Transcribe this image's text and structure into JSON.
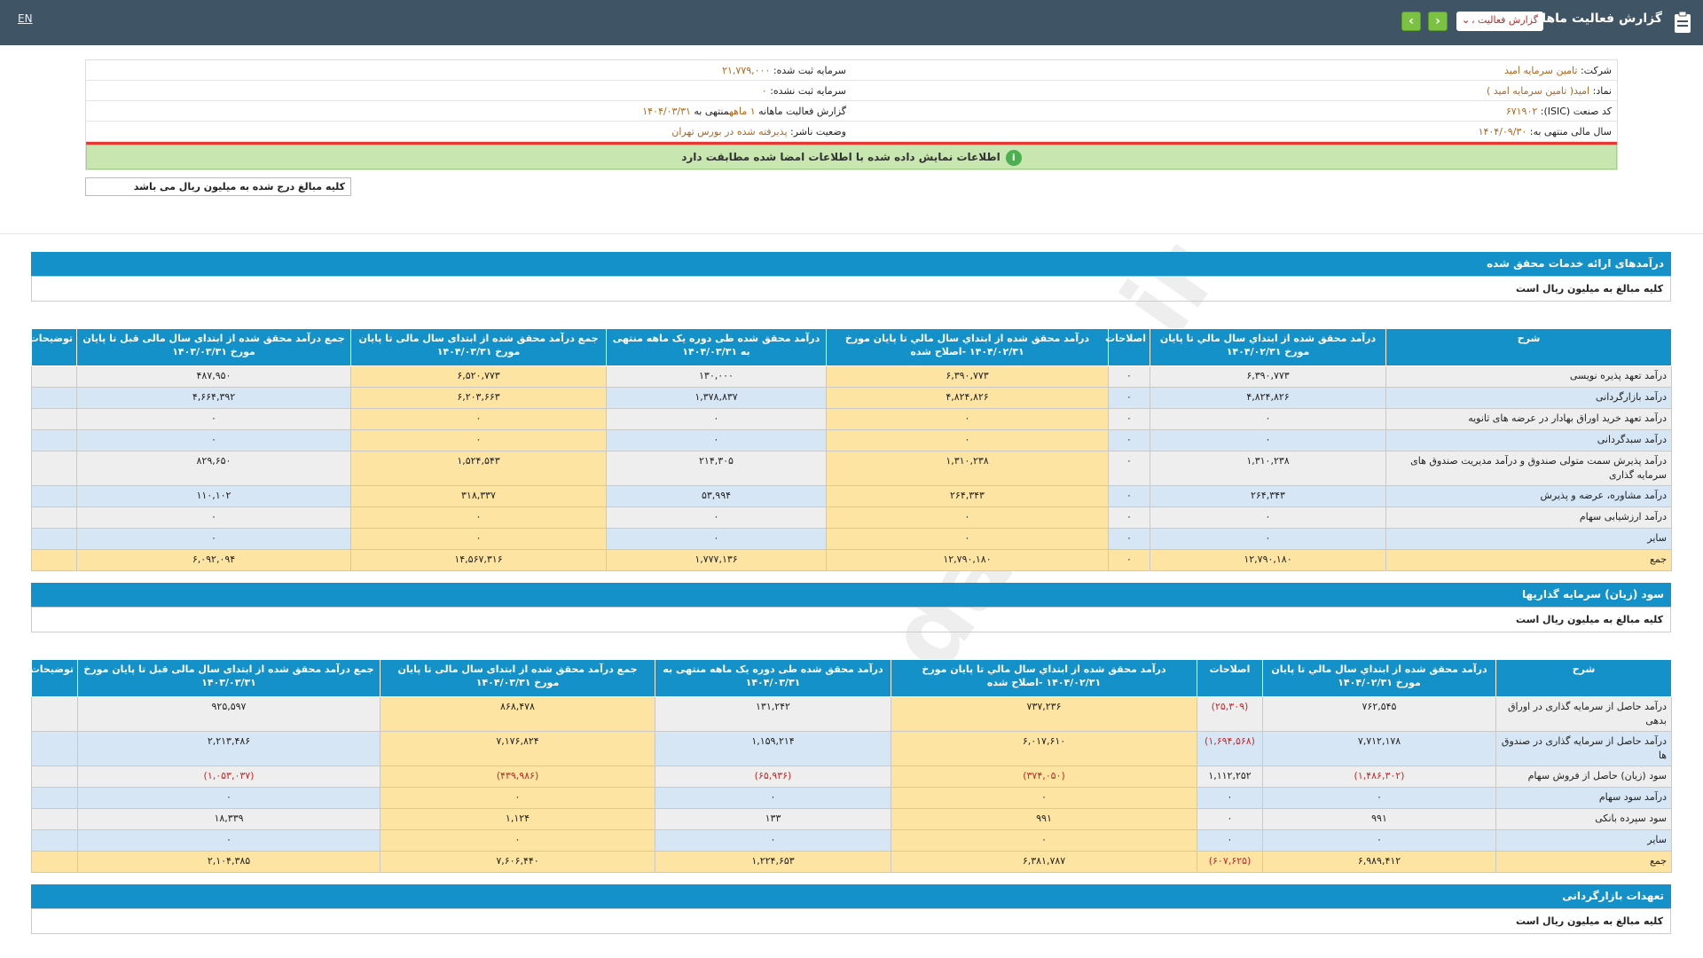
{
  "header": {
    "lang_toggle": "EN",
    "title": "گزارش فعالیت ماهانه",
    "report_select": "گزارش فعالیت ،"
  },
  "info": {
    "company_label": "شرکت:",
    "company_value": "تامین سرمایه امید",
    "symbol_label": "نماد:",
    "symbol_value": "امید( تامین سرمایه امید )",
    "isic_label": "کد صنعت (ISIC):",
    "isic_value": "۶۷۱۹۰۲",
    "fy_label": "سال مالی منتهی به:",
    "fy_value": "۱۴۰۴/۰۹/۳۰",
    "reg_capital_label": "سرمایه ثبت شده:",
    "reg_capital_value": "۲۱,۷۷۹,۰۰۰",
    "unreg_capital_label": "سرمایه ثبت نشده:",
    "unreg_capital_value": "۰",
    "report_label": "گزارش فعالیت ماهانه",
    "report_value": "۱ ماهه",
    "report_end_label": "منتهی به",
    "report_end_value": "۱۴۰۴/۰۳/۳۱",
    "status_label": "وضعیت ناشر:",
    "status_value": "پذیرفته شده در بورس تهران"
  },
  "match_message": "اطلاعات نمایش داده شده با اطلاعات امضا شده مطابقت دارد",
  "unit_note": "کلیه مبالغ درج شده به میلیون ریال می باشد",
  "watermark": "@Codal360.ir",
  "section1": {
    "title": "درآمدهای ارائه خدمات محقق شده",
    "note": "کلیه مبالغ به میلیون ریال است",
    "headers": [
      "شرح",
      "درآمد محقق شده از ابتداي سال مالي تا پایان مورخ ۱۴۰۴/۰۲/۳۱",
      "اصلاحات",
      "درآمد محقق شده از ابتداي سال مالي تا پایان مورخ ۱۴۰۴/۰۲/۳۱ -اصلاح شده",
      "درآمد محقق شده طی دوره یک ماهه منتهی به ۱۴۰۴/۰۳/۳۱",
      "جمع درآمد محقق شده از ابتدای سال مالی تا پایان مورخ ۱۴۰۴/۰۳/۳۱",
      "جمع درآمد محقق شده از ابتدای سال مالی قبل تا پایان مورخ ۱۴۰۳/۰۳/۳۱",
      "توضیحات"
    ],
    "rows": [
      [
        "درآمد تعهد پذیره نویسی",
        "۶,۳۹۰,۷۷۳",
        "۰",
        "۶,۳۹۰,۷۷۳",
        "۱۳۰,۰۰۰",
        "۶,۵۲۰,۷۷۳",
        "۴۸۷,۹۵۰",
        ""
      ],
      [
        "درآمد بازارگردانی",
        "۴,۸۲۴,۸۲۶",
        "۰",
        "۴,۸۲۴,۸۲۶",
        "۱,۳۷۸,۸۳۷",
        "۶,۲۰۳,۶۶۳",
        "۴,۶۶۴,۳۹۲",
        ""
      ],
      [
        "درآمد تعهد خرید اوراق بهادار در عرضه های ثانویه",
        "۰",
        "۰",
        "۰",
        "۰",
        "۰",
        "۰",
        ""
      ],
      [
        "درآمد سبدگردانی",
        "۰",
        "۰",
        "۰",
        "۰",
        "۰",
        "۰",
        ""
      ],
      [
        "درآمد پذیرش سمت متولی صندوق و درآمد مدیریت صندوق های سرمایه گذاری",
        "۱,۳۱۰,۲۳۸",
        "۰",
        "۱,۳۱۰,۲۳۸",
        "۲۱۴,۳۰۵",
        "۱,۵۲۴,۵۴۳",
        "۸۲۹,۶۵۰",
        ""
      ],
      [
        "درآمد مشاوره، عرضه و پذیرش",
        "۲۶۴,۳۴۳",
        "۰",
        "۲۶۴,۳۴۳",
        "۵۳,۹۹۴",
        "۳۱۸,۳۳۷",
        "۱۱۰,۱۰۲",
        ""
      ],
      [
        "درآمد ارزشیابی سهام",
        "۰",
        "۰",
        "۰",
        "۰",
        "۰",
        "۰",
        ""
      ],
      [
        "سایر",
        "۰",
        "۰",
        "۰",
        "۰",
        "۰",
        "۰",
        ""
      ]
    ],
    "total": [
      "جمع",
      "۱۲,۷۹۰,۱۸۰",
      "۰",
      "۱۲,۷۹۰,۱۸۰",
      "۱,۷۷۷,۱۳۶",
      "۱۴,۵۶۷,۳۱۶",
      "۶,۰۹۲,۰۹۴",
      ""
    ]
  },
  "section2": {
    "title": "سود (زیان) سرمایه گذاریها",
    "note": "کلیه مبالغ به میلیون ریال است",
    "headers": [
      "شرح",
      "درآمد محقق شده از ابتداي سال مالي تا پایان مورخ ۱۴۰۴/۰۲/۳۱",
      "اصلاحات",
      "درآمد محقق شده از ابتداي سال مالي تا پایان مورخ ۱۴۰۴/۰۲/۳۱ -اصلاح شده",
      "درآمد محقق شده طی دوره یک ماهه منتهی به ۱۴۰۴/۰۳/۳۱",
      "جمع درآمد محقق شده از ابتدای سال مالی تا پایان مورخ ۱۴۰۴/۰۳/۳۱",
      "جمع درآمد محقق شده از ابتدای سال مالی قبل تا پایان مورخ ۱۴۰۳/۰۳/۳۱",
      "توضیحات"
    ],
    "rows": [
      [
        "درآمد حاصل از سرمایه گذاری در اوراق بدهی",
        "۷۶۲,۵۴۵",
        "(۲۵,۳۰۹)",
        "۷۳۷,۲۳۶",
        "۱۳۱,۲۴۲",
        "۸۶۸,۴۷۸",
        "۹۲۵,۵۹۷",
        ""
      ],
      [
        "درآمد حاصل از سرمایه گذاری در صندوق ها",
        "۷,۷۱۲,۱۷۸",
        "(۱,۶۹۴,۵۶۸)",
        "۶,۰۱۷,۶۱۰",
        "۱,۱۵۹,۲۱۴",
        "۷,۱۷۶,۸۲۴",
        "۲,۲۱۳,۴۸۶",
        ""
      ],
      [
        "سود (زیان) حاصل از فروش سهام",
        "(۱,۴۸۶,۳۰۲)",
        "۱,۱۱۲,۲۵۲",
        "(۳۷۴,۰۵۰)",
        "(۶۵,۹۳۶)",
        "(۴۳۹,۹۸۶)",
        "(۱,۰۵۳,۰۳۷)",
        ""
      ],
      [
        "درآمد سود سهام",
        "۰",
        "۰",
        "۰",
        "۰",
        "۰",
        "۰",
        ""
      ],
      [
        "سود سپرده بانکی",
        "۹۹۱",
        "۰",
        "۹۹۱",
        "۱۳۳",
        "۱,۱۲۴",
        "۱۸,۳۳۹",
        ""
      ],
      [
        "سایر",
        "۰",
        "۰",
        "۰",
        "۰",
        "۰",
        "۰",
        ""
      ]
    ],
    "total": [
      "جمع",
      "۶,۹۸۹,۴۱۲",
      "(۶۰۷,۶۲۵)",
      "۶,۳۸۱,۷۸۷",
      "۱,۲۲۴,۶۵۳",
      "۷,۶۰۶,۴۴۰",
      "۲,۱۰۴,۳۸۵",
      ""
    ]
  },
  "section3": {
    "title": "تعهدات بازارگردانی",
    "note": "کلیه مبالغ به میلیون ریال است"
  }
}
